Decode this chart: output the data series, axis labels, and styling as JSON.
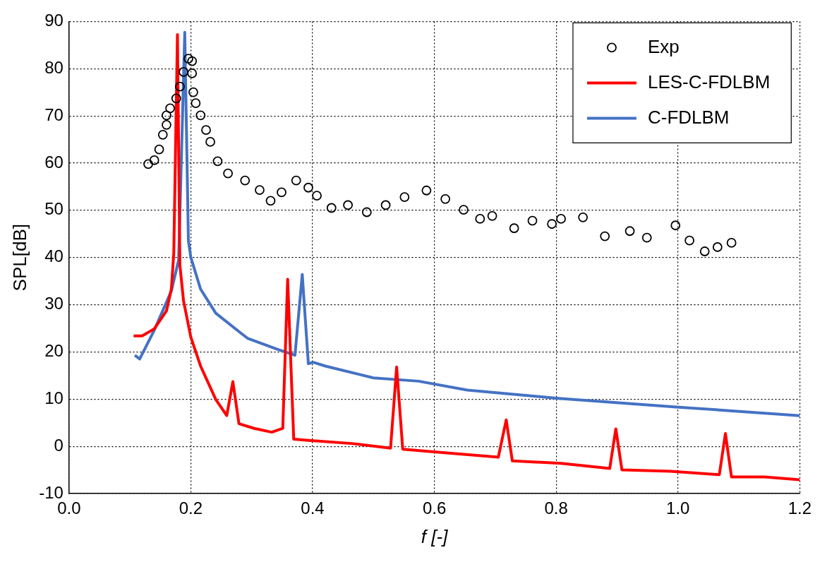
{
  "chart_data": {
    "type": "line",
    "xlabel": "f [-]",
    "ylabel": "SPL[dB]",
    "xlim": [
      0,
      1.2
    ],
    "xticks": [
      {
        "value": 0,
        "label": "0.0"
      },
      0.2,
      0.4,
      0.6,
      0.8,
      {
        "value": 1,
        "label": "1.0"
      },
      1.2
    ],
    "ylim": [
      -10,
      90
    ],
    "yticks": [
      -10,
      0,
      10,
      20,
      30,
      40,
      50,
      60,
      70,
      80,
      90
    ],
    "grid": true,
    "legend": "top right",
    "series": [
      {
        "name": "Exp",
        "type": "scatter",
        "marker": "circle",
        "color": "#000000",
        "x": [
          0.13,
          0.14,
          0.148,
          0.154,
          0.16,
          0.16,
          0.166,
          0.176,
          0.182,
          0.188,
          0.196,
          0.202,
          0.202,
          0.204,
          0.208,
          0.216,
          0.225,
          0.232,
          0.244,
          0.261,
          0.289,
          0.313,
          0.331,
          0.349,
          0.373,
          0.393,
          0.407,
          0.431,
          0.458,
          0.489,
          0.52,
          0.551,
          0.587,
          0.618,
          0.648,
          0.675,
          0.695,
          0.731,
          0.761,
          0.793,
          0.808,
          0.844,
          0.88,
          0.921,
          0.949,
          0.996,
          1.019,
          1.044,
          1.065,
          1.088
        ],
        "values": [
          59.8,
          60.6,
          62.9,
          66,
          68.1,
          70.1,
          71.6,
          73.7,
          76.2,
          79.3,
          82.1,
          81.6,
          79,
          75,
          72.7,
          70.1,
          67,
          64.5,
          60.4,
          57.8,
          56.3,
          54.3,
          52,
          53.8,
          56.3,
          54.8,
          53.1,
          50.5,
          51.1,
          49.6,
          51.1,
          52.8,
          54.2,
          52.4,
          50.1,
          48.2,
          48.8,
          46.2,
          47.8,
          47.1,
          48.2,
          48.5,
          44.5,
          45.6,
          44.2,
          46.8,
          43.6,
          41.3,
          42.2,
          43.1
        ]
      },
      {
        "name": "LES-C-FDLBM",
        "marker": "none",
        "line_style": "solid",
        "color": "#ff0000",
        "x": [
          0.106,
          0.12,
          0.14,
          0.16,
          0.168,
          0.172,
          0.178,
          0.182,
          0.188,
          0.2,
          0.216,
          0.241,
          0.259,
          0.269,
          0.279,
          0.304,
          0.333,
          0.351,
          0.359,
          0.369,
          0.397,
          0.464,
          0.528,
          0.538,
          0.548,
          0.603,
          0.705,
          0.718,
          0.728,
          0.808,
          0.888,
          0.898,
          0.908,
          0.988,
          1.068,
          1.078,
          1.088,
          1.142,
          1.2
        ],
        "values": [
          23.4,
          23.4,
          24.9,
          28.7,
          33.3,
          41,
          87.2,
          38.4,
          30.8,
          23.1,
          17,
          9.9,
          6.5,
          13.7,
          4.8,
          3.8,
          3.0,
          3.8,
          35.4,
          1.5,
          1.2,
          0.6,
          -0.4,
          16.8,
          -0.6,
          -1.2,
          -2.3,
          5.6,
          -3.1,
          -3.6,
          -4.7,
          3.7,
          -5,
          -5.3,
          -6,
          2.7,
          -6.5,
          -6.5,
          -7.1
        ]
      },
      {
        "name": "C-FDLBM",
        "marker": "none",
        "line_style": "solid",
        "color": "#4472c4",
        "x": [
          0.108,
          0.116,
          0.14,
          0.168,
          0.18,
          0.19,
          0.196,
          0.2,
          0.216,
          0.241,
          0.281,
          0.293,
          0.341,
          0.371,
          0.383,
          0.393,
          0.401,
          0.421,
          0.5,
          0.574,
          0.654,
          0.8,
          1.001,
          1.2
        ],
        "values": [
          19.3,
          18.5,
          24.6,
          32.9,
          39.5,
          87.7,
          43.6,
          40,
          33.3,
          28.2,
          24.1,
          22.9,
          20.6,
          19.3,
          36.4,
          17.5,
          17.8,
          17,
          14.5,
          13.8,
          11.9,
          10.2,
          8.3,
          6.5
        ]
      }
    ]
  }
}
